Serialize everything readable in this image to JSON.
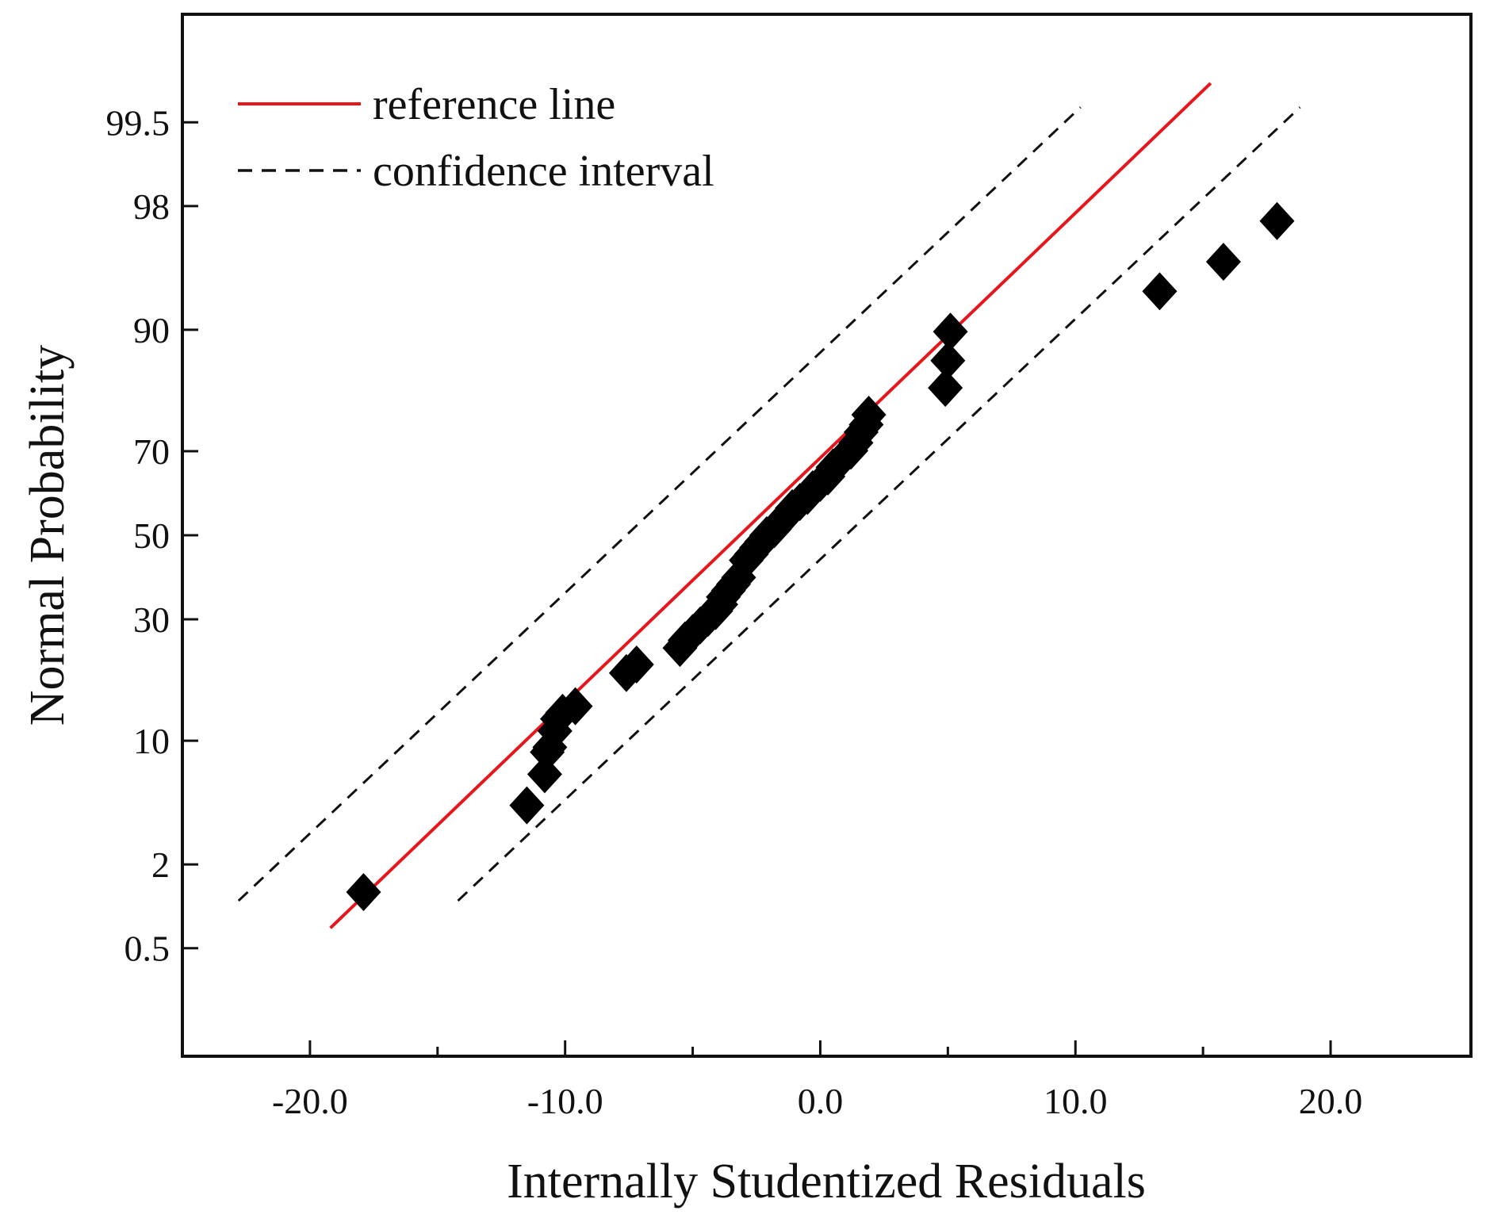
{
  "chart_data": {
    "type": "scatter",
    "title": "",
    "xlabel": "Internally Studentized Residuals",
    "ylabel": "Normal Probability",
    "xlim": [
      -25.0,
      25.5
    ],
    "y_scale": "normal-probability",
    "ylim_z": [
      -3.25,
      3.25
    ],
    "x_ticks": [
      -20.0,
      -10.0,
      0.0,
      10.0,
      20.0
    ],
    "x_tick_labels": [
      "-20.0",
      "-10.0",
      "0.0",
      "10.0",
      "20.0"
    ],
    "y_ticks": [
      0.5,
      2,
      10,
      30,
      50,
      70,
      90,
      98,
      99.5
    ],
    "y_tick_labels": [
      "0.5",
      "2",
      "10",
      "30",
      "50",
      "70",
      "90",
      "98",
      "99.5"
    ],
    "legend_position": "top-left",
    "legend": [
      {
        "label": "reference line",
        "style": "solid",
        "color": "#e8151b"
      },
      {
        "label": "confidence interval",
        "style": "dashed",
        "color": "#111111"
      }
    ],
    "reference_line": {
      "x": [
        -19.2,
        15.3
      ],
      "z": [
        -2.45,
        2.82
      ],
      "color": "#e8151b"
    },
    "confidence_interval": [
      {
        "name": "upper",
        "x": [
          -22.8,
          10.2
        ],
        "z": [
          -2.28,
          2.67
        ]
      },
      {
        "name": "lower",
        "x": [
          -14.2,
          18.8
        ],
        "z": [
          -2.28,
          2.67
        ]
      }
    ],
    "points": {
      "marker": "diamond",
      "color": "#000000",
      "x": [
        -17.9,
        -11.5,
        -10.8,
        -10.7,
        -10.6,
        -10.4,
        -10.3,
        -10.1,
        -9.6,
        -7.6,
        -7.2,
        -5.5,
        -5.3,
        -5.0,
        -4.7,
        -4.4,
        -4.1,
        -3.9,
        -3.8,
        -3.6,
        -3.4,
        -3.2,
        -2.9,
        -2.7,
        -2.5,
        -2.3,
        -2.1,
        -1.8,
        -1.6,
        -1.3,
        -1.1,
        -0.8,
        -0.5,
        -0.3,
        0.0,
        0.3,
        0.5,
        0.8,
        1.2,
        1.4,
        1.6,
        1.8,
        1.9,
        4.9,
        5.0,
        5.1,
        13.3,
        15.8,
        17.9
      ],
      "p": [
        1.3,
        4.6,
        6.8,
        8.8,
        9.3,
        11.1,
        12.6,
        13.4,
        14.3,
        19.5,
        21.0,
        24.1,
        25.6,
        27.1,
        28.7,
        30.3,
        31.8,
        33.3,
        35.0,
        36.5,
        38.0,
        39.6,
        43.8,
        45.3,
        46.9,
        48.4,
        50.0,
        51.5,
        53.0,
        55.1,
        56.7,
        58.2,
        59.7,
        61.3,
        62.8,
        64.3,
        66.4,
        68.0,
        70.1,
        71.8,
        74.0,
        75.5,
        77.4,
        82.1,
        86.2,
        89.8,
        93.6,
        95.6,
        97.5
      ]
    }
  }
}
